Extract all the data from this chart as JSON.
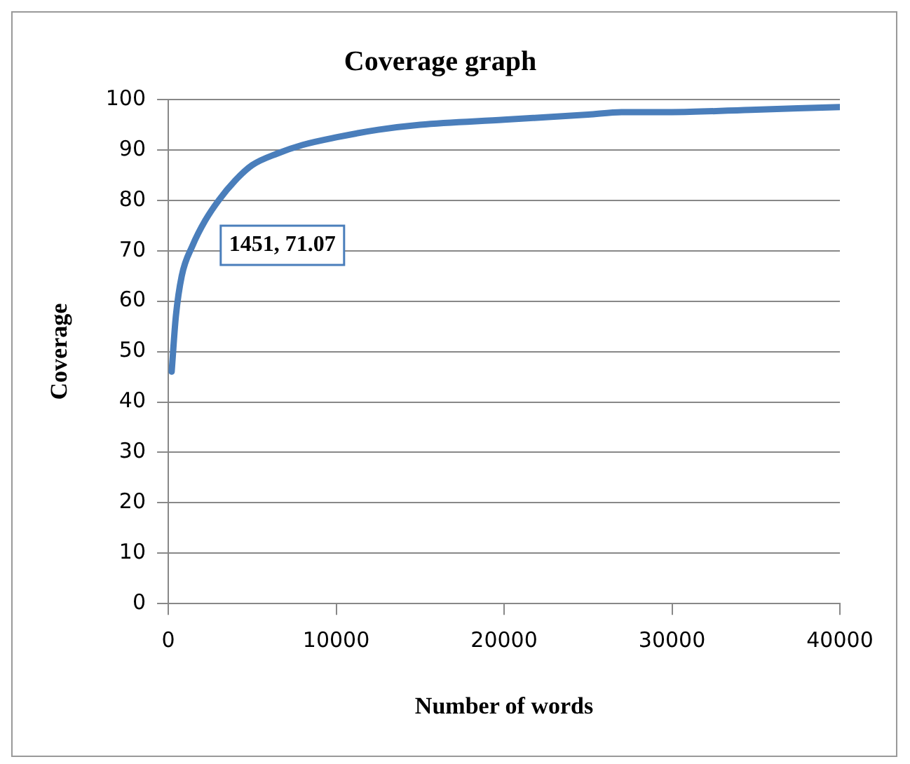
{
  "chart_data": {
    "type": "line",
    "title": "Coverage graph",
    "xlabel": "Number of words",
    "ylabel": "Coverage",
    "x": [
      200,
      450,
      800,
      1451,
      2200,
      3000,
      4000,
      5000,
      6500,
      8000,
      10000,
      12500,
      15000,
      20000,
      25000,
      27000,
      30000,
      35000,
      40000
    ],
    "series": [
      {
        "color": "#4a7ebb",
        "values": [
          46,
          57,
          65,
          71.07,
          76,
          80,
          84,
          87,
          89.3,
          91,
          92.5,
          94,
          95,
          96,
          97,
          97.5,
          97.5,
          98,
          98.5
        ]
      }
    ],
    "xlim": [
      0,
      40000
    ],
    "xticks": [
      0,
      10000,
      20000,
      30000,
      40000
    ],
    "ylim": [
      0,
      100
    ],
    "yticks": [
      0,
      10,
      20,
      30,
      40,
      50,
      60,
      70,
      80,
      90,
      100
    ],
    "grid": "y",
    "legend": false,
    "marker": "none",
    "line_style": "solid",
    "annotations": [
      {
        "text": "1451, 71.07",
        "x": 1451,
        "y": 71.07
      }
    ]
  }
}
